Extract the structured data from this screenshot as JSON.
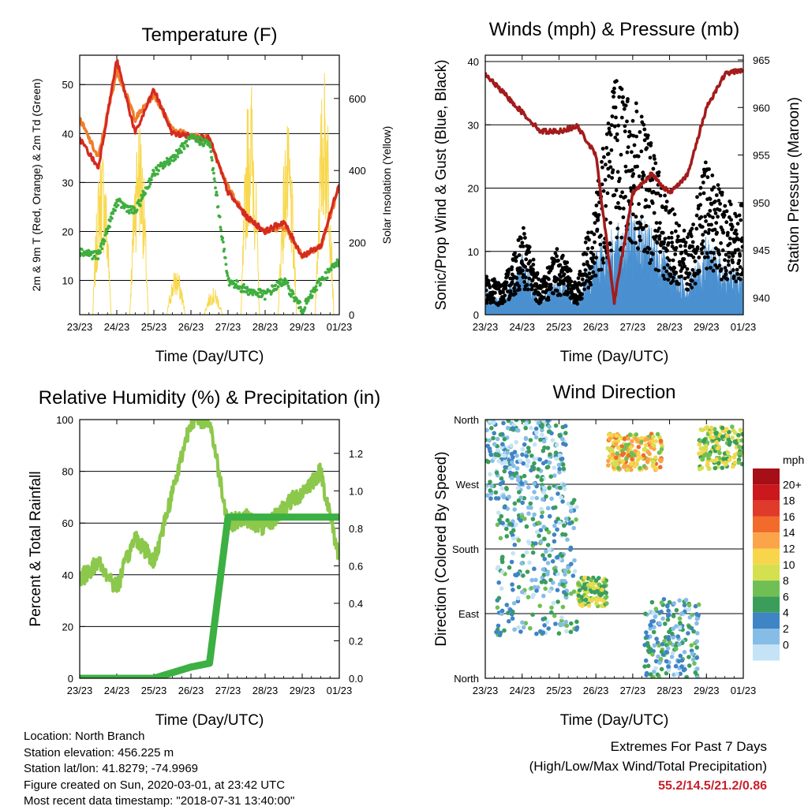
{
  "panels": [
    {
      "id": "temp",
      "title": "Temperature (F)",
      "xlabel": "Time (Day/UTC)",
      "ylabel_left": "2m & 9m T (Red, Orange) & 2m Td (Green)",
      "ylabel_right": "Solar Insolation (Yellow)",
      "xticks": [
        "23/23",
        "24/23",
        "25/23",
        "26/23",
        "27/23",
        "28/23",
        "29/23",
        "01/23"
      ],
      "yticks_left": [
        "10",
        "20",
        "30",
        "40",
        "50"
      ],
      "yticks_right": [
        "0",
        "200",
        "400",
        "600"
      ]
    },
    {
      "id": "wind",
      "title": "Winds (mph) & Pressure (mb)",
      "xlabel": "Time (Day/UTC)",
      "ylabel_left": "Sonic/Prop Wind & Gust (Blue, Black)",
      "ylabel_right": "Station Pressure (Maroon)",
      "xticks": [
        "23/23",
        "24/23",
        "25/23",
        "26/23",
        "27/23",
        "28/23",
        "29/23",
        "01/23"
      ],
      "yticks_left": [
        "0",
        "10",
        "20",
        "30",
        "40"
      ],
      "yticks_right": [
        "940",
        "945",
        "950",
        "955",
        "960",
        "965"
      ]
    },
    {
      "id": "rh",
      "title": "Relative Humidity (%) & Precipitation (in)",
      "xlabel": "Time (Day/UTC)",
      "ylabel_left": "Percent & Total Rainfall",
      "ylabel_right": "",
      "xticks": [
        "23/23",
        "24/23",
        "25/23",
        "26/23",
        "27/23",
        "28/23",
        "29/23",
        "01/23"
      ],
      "yticks_left": [
        "0",
        "20",
        "40",
        "60",
        "80",
        "100"
      ],
      "yticks_right": [
        "0.0",
        "0.2",
        "0.4",
        "0.6",
        "0.8",
        "1.0",
        "1.2"
      ]
    },
    {
      "id": "dir",
      "title": "Wind Direction",
      "xlabel": "Time (Day/UTC)",
      "ylabel_left": "Direction (Colored By Speed)",
      "ylabel_right": "",
      "xticks": [
        "23/23",
        "24/23",
        "25/23",
        "26/23",
        "27/23",
        "28/23",
        "29/23",
        "01/23"
      ],
      "yticks_left": [
        "North",
        "East",
        "South",
        "West",
        "North"
      ],
      "yticks_right": []
    }
  ],
  "legend": {
    "unit": "mph",
    "labels": [
      "20+",
      "18",
      "16",
      "14",
      "12",
      "10",
      "8",
      "6",
      "4",
      "2",
      "0"
    ],
    "colors": [
      "#a50f15",
      "#cb181d",
      "#e03a2a",
      "#f26b2a",
      "#fba44a",
      "#f7d64b",
      "#d5e050",
      "#6fbf55",
      "#3a9e5a",
      "#3f84c4",
      "#86bde6",
      "#c4e3f6"
    ]
  },
  "info": {
    "location": "Location: North Branch",
    "elevation": "Station elevation: 456.225 m",
    "latlon": "Station lat/lon: 41.8279; -74.9969",
    "created": "Figure created on Sun, 2020-03-01, at 23:42 UTC",
    "recent": "Most recent data timestamp: \"2018-07-31 13:40:00\""
  },
  "extremes": {
    "title": "Extremes For Past 7 Days",
    "subtitle": "(High/Low/Max Wind/Total Precipitation)",
    "values": "55.2/14.5/21.2/0.86"
  },
  "chart_data": [
    {
      "type": "line",
      "title": "Temperature (F)",
      "xlabel": "Time (Day/UTC)",
      "ylabel": "2m & 9m T (Red, Orange) & 2m Td (Green)",
      "y2label": "Solar Insolation (Yellow)",
      "x_days": [
        0,
        0.5,
        1,
        1.5,
        2,
        2.5,
        3,
        3.5,
        4,
        4.5,
        5,
        5.5,
        6,
        6.5,
        7
      ],
      "ylim": [
        3,
        56
      ],
      "y2lim": [
        0,
        720
      ],
      "series": [
        {
          "name": "2m T",
          "color": "#d42a22",
          "values": [
            39,
            33,
            55,
            40,
            49,
            40,
            39.5,
            39,
            28,
            23,
            20,
            22,
            15,
            17,
            30
          ]
        },
        {
          "name": "9m T",
          "color": "#f07d2a",
          "values": [
            43,
            35,
            53,
            43,
            48,
            41,
            39.5,
            39,
            29,
            23,
            20,
            21,
            15,
            17,
            29
          ]
        },
        {
          "name": "2m Td",
          "color": "#3fae3f",
          "values": [
            16,
            15,
            26,
            24,
            32,
            35,
            39,
            38,
            10,
            8,
            7,
            10,
            4,
            10,
            14
          ]
        },
        {
          "name": "Solar Insolation",
          "axis": "right",
          "color": "#f8d84e",
          "peaks_day": [
            0.6,
            1.6,
            2.6,
            3.6,
            4.6,
            5.6,
            6.6
          ],
          "peaks_value": [
            480,
            570,
            130,
            75,
            680,
            530,
            690
          ]
        }
      ]
    },
    {
      "type": "line",
      "title": "Winds (mph) & Pressure (mb)",
      "xlabel": "Time (Day/UTC)",
      "ylabel": "Sonic/Prop Wind & Gust (Blue, Black)",
      "y2label": "Station Pressure (Maroon)",
      "x_days": [
        0,
        0.5,
        1,
        1.5,
        2,
        2.5,
        3,
        3.5,
        4,
        4.5,
        5,
        5.5,
        6,
        6.5,
        7
      ],
      "ylim": [
        0,
        41
      ],
      "y2lim": [
        938.2,
        965.5
      ],
      "series": [
        {
          "name": "Wind",
          "color": "#4a90d0",
          "values": [
            3,
            2,
            7,
            2,
            5,
            2,
            8,
            10,
            12,
            10,
            6,
            4,
            9,
            6,
            5
          ]
        },
        {
          "name": "Gust",
          "color": "#000000",
          "values": [
            5,
            4,
            12,
            4,
            9,
            4,
            16,
            30,
            28,
            22,
            14,
            10,
            20,
            15,
            14
          ]
        },
        {
          "name": "Station Pressure",
          "axis": "right",
          "color": "#a31b1b",
          "values": [
            963.5,
            961.5,
            959.5,
            957.5,
            957.5,
            958,
            955,
            939.5,
            951,
            953,
            951,
            953,
            960,
            963.5,
            964
          ]
        }
      ]
    },
    {
      "type": "line",
      "title": "Relative Humidity (%) & Precipitation (in)",
      "xlabel": "Time (Day/UTC)",
      "ylabel": "Percent & Total Rainfall",
      "x_days": [
        0,
        0.5,
        1,
        1.5,
        2,
        2.5,
        3,
        3.5,
        4,
        4.5,
        5,
        5.5,
        6,
        6.5,
        7
      ],
      "ylim": [
        0,
        100
      ],
      "y2lim": [
        0,
        1.38
      ],
      "series": [
        {
          "name": "Relative Humidity",
          "color": "#8cc84b",
          "values": [
            38,
            45,
            35,
            55,
            45,
            72,
            100,
            100,
            60,
            62,
            58,
            66,
            72,
            80,
            46
          ]
        },
        {
          "name": "Total Precipitation",
          "axis": "right",
          "color": "#3cb043",
          "values": [
            0,
            0,
            0,
            0,
            0,
            0.03,
            0.06,
            0.08,
            0.86,
            0.86,
            0.86,
            0.86,
            0.86,
            0.86,
            0.86
          ]
        }
      ]
    },
    {
      "type": "scatter",
      "title": "Wind Direction",
      "xlabel": "Time (Day/UTC)",
      "ylabel": "Direction (Colored By Speed)",
      "x_days": [
        0,
        1,
        2,
        3,
        4,
        5,
        6,
        7
      ],
      "ylim": [
        0,
        360
      ],
      "legend_unit": "mph",
      "clusters": [
        {
          "day_from": 0,
          "day_to": 2.2,
          "dir_from": 250,
          "dir_to": 360,
          "speed": 3
        },
        {
          "day_from": 0.3,
          "day_to": 2.5,
          "dir_from": 60,
          "dir_to": 250,
          "speed": 4
        },
        {
          "day_from": 2.5,
          "day_to": 3.3,
          "dir_from": 100,
          "dir_to": 140,
          "speed": 9
        },
        {
          "day_from": 3.3,
          "day_to": 4.8,
          "dir_from": 290,
          "dir_to": 340,
          "speed": 12
        },
        {
          "day_from": 4.3,
          "day_to": 5.8,
          "dir_from": 0,
          "dir_to": 110,
          "speed": 4
        },
        {
          "day_from": 5.8,
          "day_to": 7,
          "dir_from": 290,
          "dir_to": 350,
          "speed": 9
        }
      ]
    }
  ]
}
